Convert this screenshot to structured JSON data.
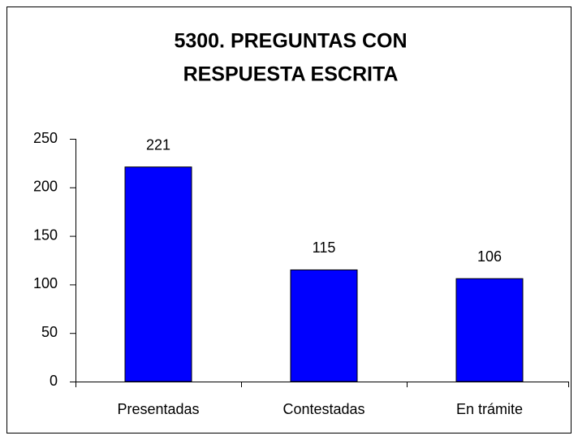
{
  "chart_data": {
    "type": "bar",
    "title": [
      "5300. PREGUNTAS CON",
      "RESPUESTA ESCRITA"
    ],
    "categories": [
      "Presentadas",
      "Contestadas",
      "En trámite"
    ],
    "values": [
      221,
      115,
      106
    ],
    "color": "#0000ff",
    "ylim": [
      0,
      250
    ],
    "yticks": [
      0,
      50,
      100,
      150,
      200,
      250
    ],
    "grid": false
  }
}
